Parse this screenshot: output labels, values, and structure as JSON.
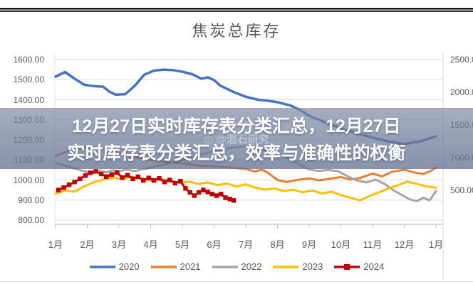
{
  "chart": {
    "title": "焦炭总库存"
  },
  "overlay": {
    "title_line1": "12月27日实时库存表分类汇总，12月27日",
    "title_line2": "实时库存表分类汇总，效率与准确性的权衡",
    "watermark": "◎ @混石研究"
  },
  "chart_data": {
    "type": "line",
    "title": "焦炭总库存",
    "x_categories": [
      "1月",
      "2月",
      "3月",
      "4月",
      "5月",
      "6月",
      "7月",
      "8月",
      "9月",
      "10月",
      "11月",
      "12月",
      "1月"
    ],
    "y_axis_left": {
      "min": 800,
      "max": 1600,
      "step": 100,
      "labels": [
        "1600.00",
        "1500.00",
        "1400.00",
        "1300.00",
        "1200.00",
        "1100.00",
        "1000.00",
        "900.00",
        "800.00"
      ]
    },
    "y_axis_right": {
      "labels": [
        "2500.00",
        "2000.00",
        "1500.00",
        "1000.00",
        "500.00"
      ]
    },
    "grid": true,
    "legend_position": "bottom",
    "colors": {
      "grid": "#dcdcdc",
      "axis": "#bfbfbf",
      "banner": "#6e7a98",
      "text": "#595959"
    },
    "series": [
      {
        "name": "2020",
        "color": "#4472C4",
        "width": 3.5,
        "marker": false,
        "points": [
          [
            0,
            1515
          ],
          [
            0.3,
            1538
          ],
          [
            0.6,
            1505
          ],
          [
            0.9,
            1475
          ],
          [
            1.2,
            1468
          ],
          [
            1.5,
            1465
          ],
          [
            1.7,
            1440
          ],
          [
            1.9,
            1425
          ],
          [
            2.2,
            1428
          ],
          [
            2.5,
            1470
          ],
          [
            2.8,
            1525
          ],
          [
            3.1,
            1545
          ],
          [
            3.4,
            1550
          ],
          [
            3.7,
            1548
          ],
          [
            4,
            1540
          ],
          [
            4.3,
            1528
          ],
          [
            4.6,
            1505
          ],
          [
            4.8,
            1512
          ],
          [
            5,
            1498
          ],
          [
            5.2,
            1470
          ],
          [
            5.6,
            1440
          ],
          [
            6,
            1415
          ],
          [
            6.4,
            1400
          ],
          [
            6.7,
            1395
          ],
          [
            7,
            1388
          ],
          [
            7.4,
            1372
          ],
          [
            7.7,
            1350
          ],
          [
            8,
            1320
          ],
          [
            8.5,
            1288
          ],
          [
            9,
            1258
          ],
          [
            9.5,
            1232
          ],
          [
            10,
            1212
          ],
          [
            10.5,
            1192
          ],
          [
            11,
            1180
          ],
          [
            11.5,
            1192
          ],
          [
            12,
            1218
          ]
        ]
      },
      {
        "name": "2021",
        "color": "#ED7D31",
        "width": 3,
        "marker": false,
        "points": [
          [
            0,
            1120
          ],
          [
            0.5,
            1150
          ],
          [
            1,
            1165
          ],
          [
            1.5,
            1155
          ],
          [
            2,
            1135
          ],
          [
            2.5,
            1115
          ],
          [
            3,
            1100
          ],
          [
            3.5,
            1090
          ],
          [
            4,
            1082
          ],
          [
            4.5,
            1072
          ],
          [
            5,
            1068
          ],
          [
            5.5,
            1062
          ],
          [
            6,
            1055
          ],
          [
            6.3,
            1042
          ],
          [
            6.5,
            1052
          ],
          [
            6.7,
            1035
          ],
          [
            7,
            1000
          ],
          [
            7.3,
            990
          ],
          [
            7.6,
            1000
          ],
          [
            8,
            1008
          ],
          [
            8.3,
            998
          ],
          [
            8.6,
            1005
          ],
          [
            9,
            1015
          ],
          [
            9.3,
            1002
          ],
          [
            9.6,
            1010
          ],
          [
            10,
            1032
          ],
          [
            10.3,
            1018
          ],
          [
            10.6,
            1040
          ],
          [
            11,
            1052
          ],
          [
            11.3,
            1038
          ],
          [
            11.6,
            1030
          ],
          [
            11.8,
            1042
          ],
          [
            12,
            1062
          ]
        ]
      },
      {
        "name": "2022",
        "color": "#A5A5A5",
        "width": 3,
        "marker": false,
        "points": [
          [
            0,
            1085
          ],
          [
            0.5,
            1062
          ],
          [
            0.8,
            1048
          ],
          [
            1,
            1040
          ],
          [
            1.2,
            1034
          ],
          [
            1.4,
            1046
          ],
          [
            1.6,
            1038
          ],
          [
            1.8,
            1048
          ],
          [
            2,
            1042
          ],
          [
            2.2,
            1052
          ],
          [
            2.5,
            1045
          ],
          [
            2.8,
            1055
          ],
          [
            3.1,
            1065
          ],
          [
            3.5,
            1080
          ],
          [
            4,
            1100
          ],
          [
            4.5,
            1122
          ],
          [
            5,
            1145
          ],
          [
            5.5,
            1160
          ],
          [
            6,
            1168
          ],
          [
            6.5,
            1155
          ],
          [
            7,
            1132
          ],
          [
            7.5,
            1098
          ],
          [
            7.8,
            1068
          ],
          [
            8,
            1052
          ],
          [
            8.3,
            1045
          ],
          [
            8.6,
            1050
          ],
          [
            8.9,
            1044
          ],
          [
            9.2,
            1020
          ],
          [
            9.5,
            998
          ],
          [
            9.8,
            988
          ],
          [
            10.1,
            1002
          ],
          [
            10.4,
            978
          ],
          [
            10.7,
            945
          ],
          [
            11,
            918
          ],
          [
            11.2,
            902
          ],
          [
            11.4,
            895
          ],
          [
            11.6,
            912
          ],
          [
            11.8,
            898
          ],
          [
            12,
            945
          ]
        ]
      },
      {
        "name": "2023",
        "color": "#FFC000",
        "width": 3,
        "marker": false,
        "points": [
          [
            0,
            932
          ],
          [
            0.3,
            948
          ],
          [
            0.6,
            942
          ],
          [
            0.9,
            968
          ],
          [
            1.2,
            988
          ],
          [
            1.5,
            1002
          ],
          [
            1.8,
            1012
          ],
          [
            2.1,
            1005
          ],
          [
            2.4,
            1015
          ],
          [
            2.7,
            1008
          ],
          [
            3,
            998
          ],
          [
            3.3,
            1006
          ],
          [
            3.6,
            995
          ],
          [
            3.9,
            985
          ],
          [
            4.2,
            992
          ],
          [
            4.5,
            980
          ],
          [
            4.8,
            988
          ],
          [
            5.1,
            975
          ],
          [
            5.4,
            982
          ],
          [
            5.7,
            968
          ],
          [
            6,
            978
          ],
          [
            6.3,
            962
          ],
          [
            6.6,
            952
          ],
          [
            6.9,
            958
          ],
          [
            7.2,
            945
          ],
          [
            7.5,
            952
          ],
          [
            7.8,
            938
          ],
          [
            8.1,
            948
          ],
          [
            8.4,
            932
          ],
          [
            8.7,
            942
          ],
          [
            9,
            925
          ],
          [
            9.3,
            912
          ],
          [
            9.6,
            898
          ],
          [
            9.9,
            920
          ],
          [
            10.2,
            938
          ],
          [
            10.5,
            958
          ],
          [
            10.8,
            975
          ],
          [
            11.1,
            992
          ],
          [
            11.4,
            980
          ],
          [
            11.7,
            968
          ],
          [
            12,
            962
          ]
        ]
      },
      {
        "name": "2024",
        "color": "#C00000",
        "width": 3,
        "marker": true,
        "points": [
          [
            0.09,
            950
          ],
          [
            0.26,
            962
          ],
          [
            0.43,
            976
          ],
          [
            0.6,
            990
          ],
          [
            0.77,
            1006
          ],
          [
            0.94,
            1022
          ],
          [
            1.1,
            1036
          ],
          [
            1.27,
            1043
          ],
          [
            1.44,
            1030
          ],
          [
            1.6,
            1017
          ],
          [
            1.77,
            1027
          ],
          [
            1.94,
            1038
          ],
          [
            2.1,
            1012
          ],
          [
            2.27,
            1024
          ],
          [
            2.44,
            1006
          ],
          [
            2.6,
            1016
          ],
          [
            2.77,
            998
          ],
          [
            2.94,
            1010
          ],
          [
            3.1,
            998
          ],
          [
            3.27,
            1008
          ],
          [
            3.44,
            990
          ],
          [
            3.6,
            1000
          ],
          [
            3.77,
            984
          ],
          [
            3.94,
            994
          ],
          [
            4.1,
            958
          ],
          [
            4.24,
            938
          ],
          [
            4.38,
            922
          ],
          [
            4.52,
            938
          ],
          [
            4.66,
            950
          ],
          [
            4.8,
            940
          ],
          [
            4.94,
            930
          ],
          [
            5.08,
            922
          ],
          [
            5.22,
            930
          ],
          [
            5.36,
            912
          ],
          [
            5.5,
            905
          ],
          [
            5.62,
            898
          ]
        ]
      }
    ]
  }
}
